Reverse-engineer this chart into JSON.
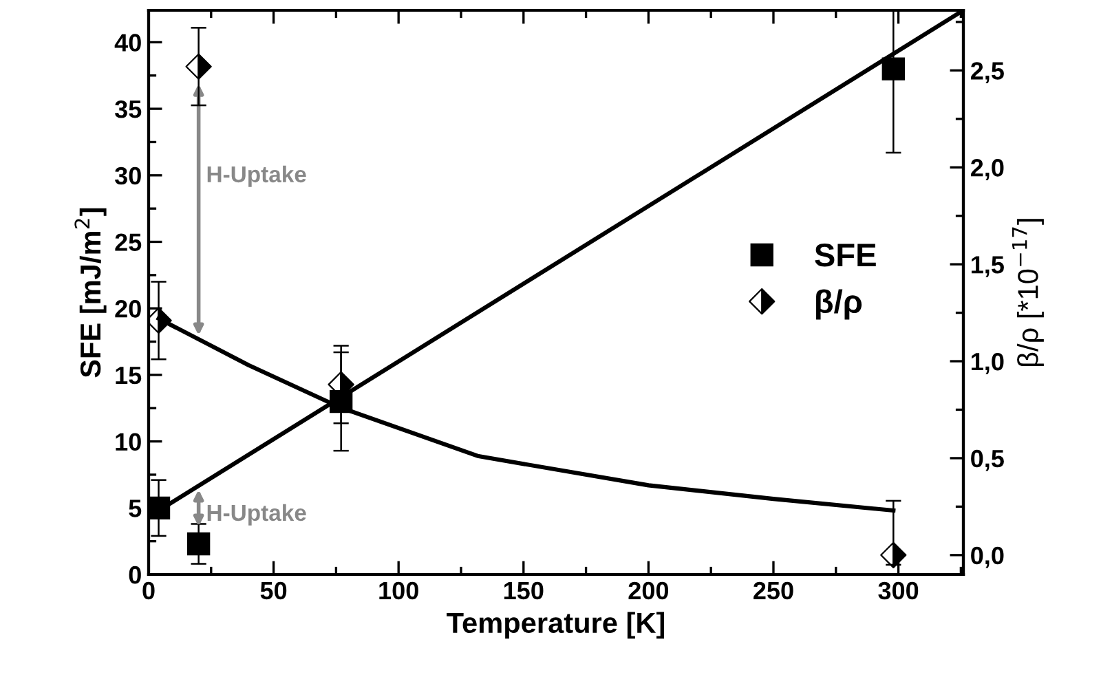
{
  "chart_data": {
    "type": "scatter",
    "xlabel": "Temperature [K]",
    "ylabel": "SFE [mJ/m$^{2}$]",
    "y2label": "β/ρ [*10$^{−17}$]",
    "xlim": [
      0,
      326
    ],
    "xticks": [
      0,
      50,
      100,
      150,
      200,
      250,
      300
    ],
    "ylim": [
      0,
      42.4
    ],
    "yticks": [
      0,
      5,
      10,
      15,
      20,
      25,
      30,
      35,
      40
    ],
    "y2lim": [
      -0.1,
      2.81
    ],
    "y2ticks": [
      {
        "value": 0,
        "label": "0,0"
      },
      {
        "value": 0.5,
        "label": "0,5"
      },
      {
        "value": 1,
        "label": "1,0"
      },
      {
        "value": 1.5,
        "label": "1,5"
      },
      {
        "value": 2,
        "label": "2,0"
      },
      {
        "value": 2.5,
        "label": "2,5"
      }
    ],
    "grid": false,
    "legend": "right",
    "series": [
      {
        "name": "SFE",
        "marker": "square",
        "color": "#000000",
        "x": [
          4,
          20,
          77,
          298
        ],
        "values": [
          5.0,
          2.3,
          13.0,
          38.0
        ],
        "errors": [
          2.1,
          1.5,
          3.7,
          [
            31.7,
            42.4
          ]
        ]
      },
      {
        "name": "β/ρ",
        "marker": "diamond",
        "axis": "y2",
        "color": "#000000",
        "x": [
          4,
          20,
          77,
          298
        ],
        "values": [
          1.21,
          2.52,
          0.88,
          0.0
        ],
        "errors": [
          0.2,
          0.2,
          0.2,
          [
            -0.05,
            0.28
          ]
        ]
      },
      {
        "type": "line",
        "color": "#000000",
        "x": [
          4,
          326
        ],
        "values": [
          4.8,
          42.4
        ]
      },
      {
        "type": "line",
        "axis": "y2",
        "color": "#000000",
        "x": [
          4,
          40,
          77,
          132,
          200,
          250,
          298
        ],
        "values": [
          1.22,
          0.98,
          0.76,
          0.51,
          0.36,
          0.29,
          0.23
        ]
      }
    ],
    "annotations": [
      "H-Uptake",
      "H-Uptake"
    ]
  }
}
